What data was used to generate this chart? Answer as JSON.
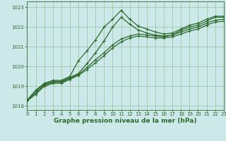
{
  "series": [
    {
      "x": [
        0,
        1,
        2,
        3,
        4,
        5,
        6,
        7,
        8,
        9,
        10,
        11,
        12,
        13,
        14,
        15,
        16,
        17,
        18,
        19,
        20,
        21,
        22,
        23
      ],
      "y": [
        1018.3,
        1018.8,
        1019.15,
        1019.3,
        1019.3,
        1019.5,
        1020.3,
        1020.8,
        1021.35,
        1022.0,
        1022.4,
        1022.85,
        1022.4,
        1022.05,
        1021.9,
        1021.75,
        1021.65,
        1021.7,
        1021.9,
        1022.1,
        1022.2,
        1022.4,
        1022.55,
        1022.55
      ],
      "color": "#2d6a2d",
      "linewidth": 0.9,
      "marker": "P",
      "markersize": 3.0,
      "linestyle": "-"
    },
    {
      "x": [
        0,
        1,
        2,
        3,
        4,
        5,
        6,
        7,
        8,
        9,
        10,
        11,
        12,
        13,
        14,
        15,
        16,
        17,
        18,
        19,
        20,
        21,
        22,
        23
      ],
      "y": [
        1018.3,
        1018.75,
        1019.1,
        1019.25,
        1019.25,
        1019.45,
        1019.65,
        1020.15,
        1020.7,
        1021.3,
        1022.0,
        1022.5,
        1022.15,
        1021.85,
        1021.7,
        1021.6,
        1021.55,
        1021.6,
        1021.85,
        1022.0,
        1022.1,
        1022.3,
        1022.5,
        1022.5
      ],
      "color": "#2d6a2d",
      "linewidth": 0.9,
      "marker": "P",
      "markersize": 3.0,
      "linestyle": "-"
    },
    {
      "x": [
        0,
        1,
        2,
        3,
        4,
        5,
        6,
        7,
        8,
        9,
        10,
        11,
        12,
        13,
        14,
        15,
        16,
        17,
        18,
        19,
        20,
        21,
        22,
        23
      ],
      "y": [
        1018.3,
        1018.65,
        1019.05,
        1019.2,
        1019.2,
        1019.4,
        1019.6,
        1019.95,
        1020.35,
        1020.7,
        1021.1,
        1021.4,
        1021.55,
        1021.65,
        1021.6,
        1021.55,
        1021.5,
        1021.6,
        1021.75,
        1021.9,
        1022.0,
        1022.2,
        1022.35,
        1022.4
      ],
      "color": "#2d6a2d",
      "linewidth": 0.9,
      "marker": "P",
      "markersize": 3.0,
      "linestyle": "-"
    },
    {
      "x": [
        0,
        1,
        2,
        3,
        4,
        5,
        6,
        7,
        8,
        9,
        10,
        11,
        12,
        13,
        14,
        15,
        16,
        17,
        18,
        19,
        20,
        21,
        22,
        23
      ],
      "y": [
        1018.25,
        1018.6,
        1019.0,
        1019.15,
        1019.15,
        1019.35,
        1019.55,
        1019.85,
        1020.2,
        1020.55,
        1020.95,
        1021.25,
        1021.45,
        1021.55,
        1021.5,
        1021.45,
        1021.45,
        1021.5,
        1021.65,
        1021.8,
        1021.9,
        1022.1,
        1022.25,
        1022.3
      ],
      "color": "#2d6a2d",
      "linewidth": 0.9,
      "marker": "P",
      "markersize": 3.0,
      "linestyle": "-"
    }
  ],
  "xlim": [
    0,
    23
  ],
  "ylim": [
    1017.8,
    1023.3
  ],
  "yticks": [
    1018,
    1019,
    1020,
    1021,
    1022,
    1023
  ],
  "xticks": [
    0,
    1,
    2,
    3,
    4,
    5,
    6,
    7,
    8,
    9,
    10,
    11,
    12,
    13,
    14,
    15,
    16,
    17,
    18,
    19,
    20,
    21,
    22,
    23
  ],
  "xlabel": "Graphe pression niveau de la mer (hPa)",
  "bg_color": "#cce8e8",
  "grid_color": "#88bb88",
  "line_color": "#2d6a2d",
  "text_color": "#2d6a2d",
  "label_fontsize": 6.5,
  "tick_fontsize": 5.0
}
